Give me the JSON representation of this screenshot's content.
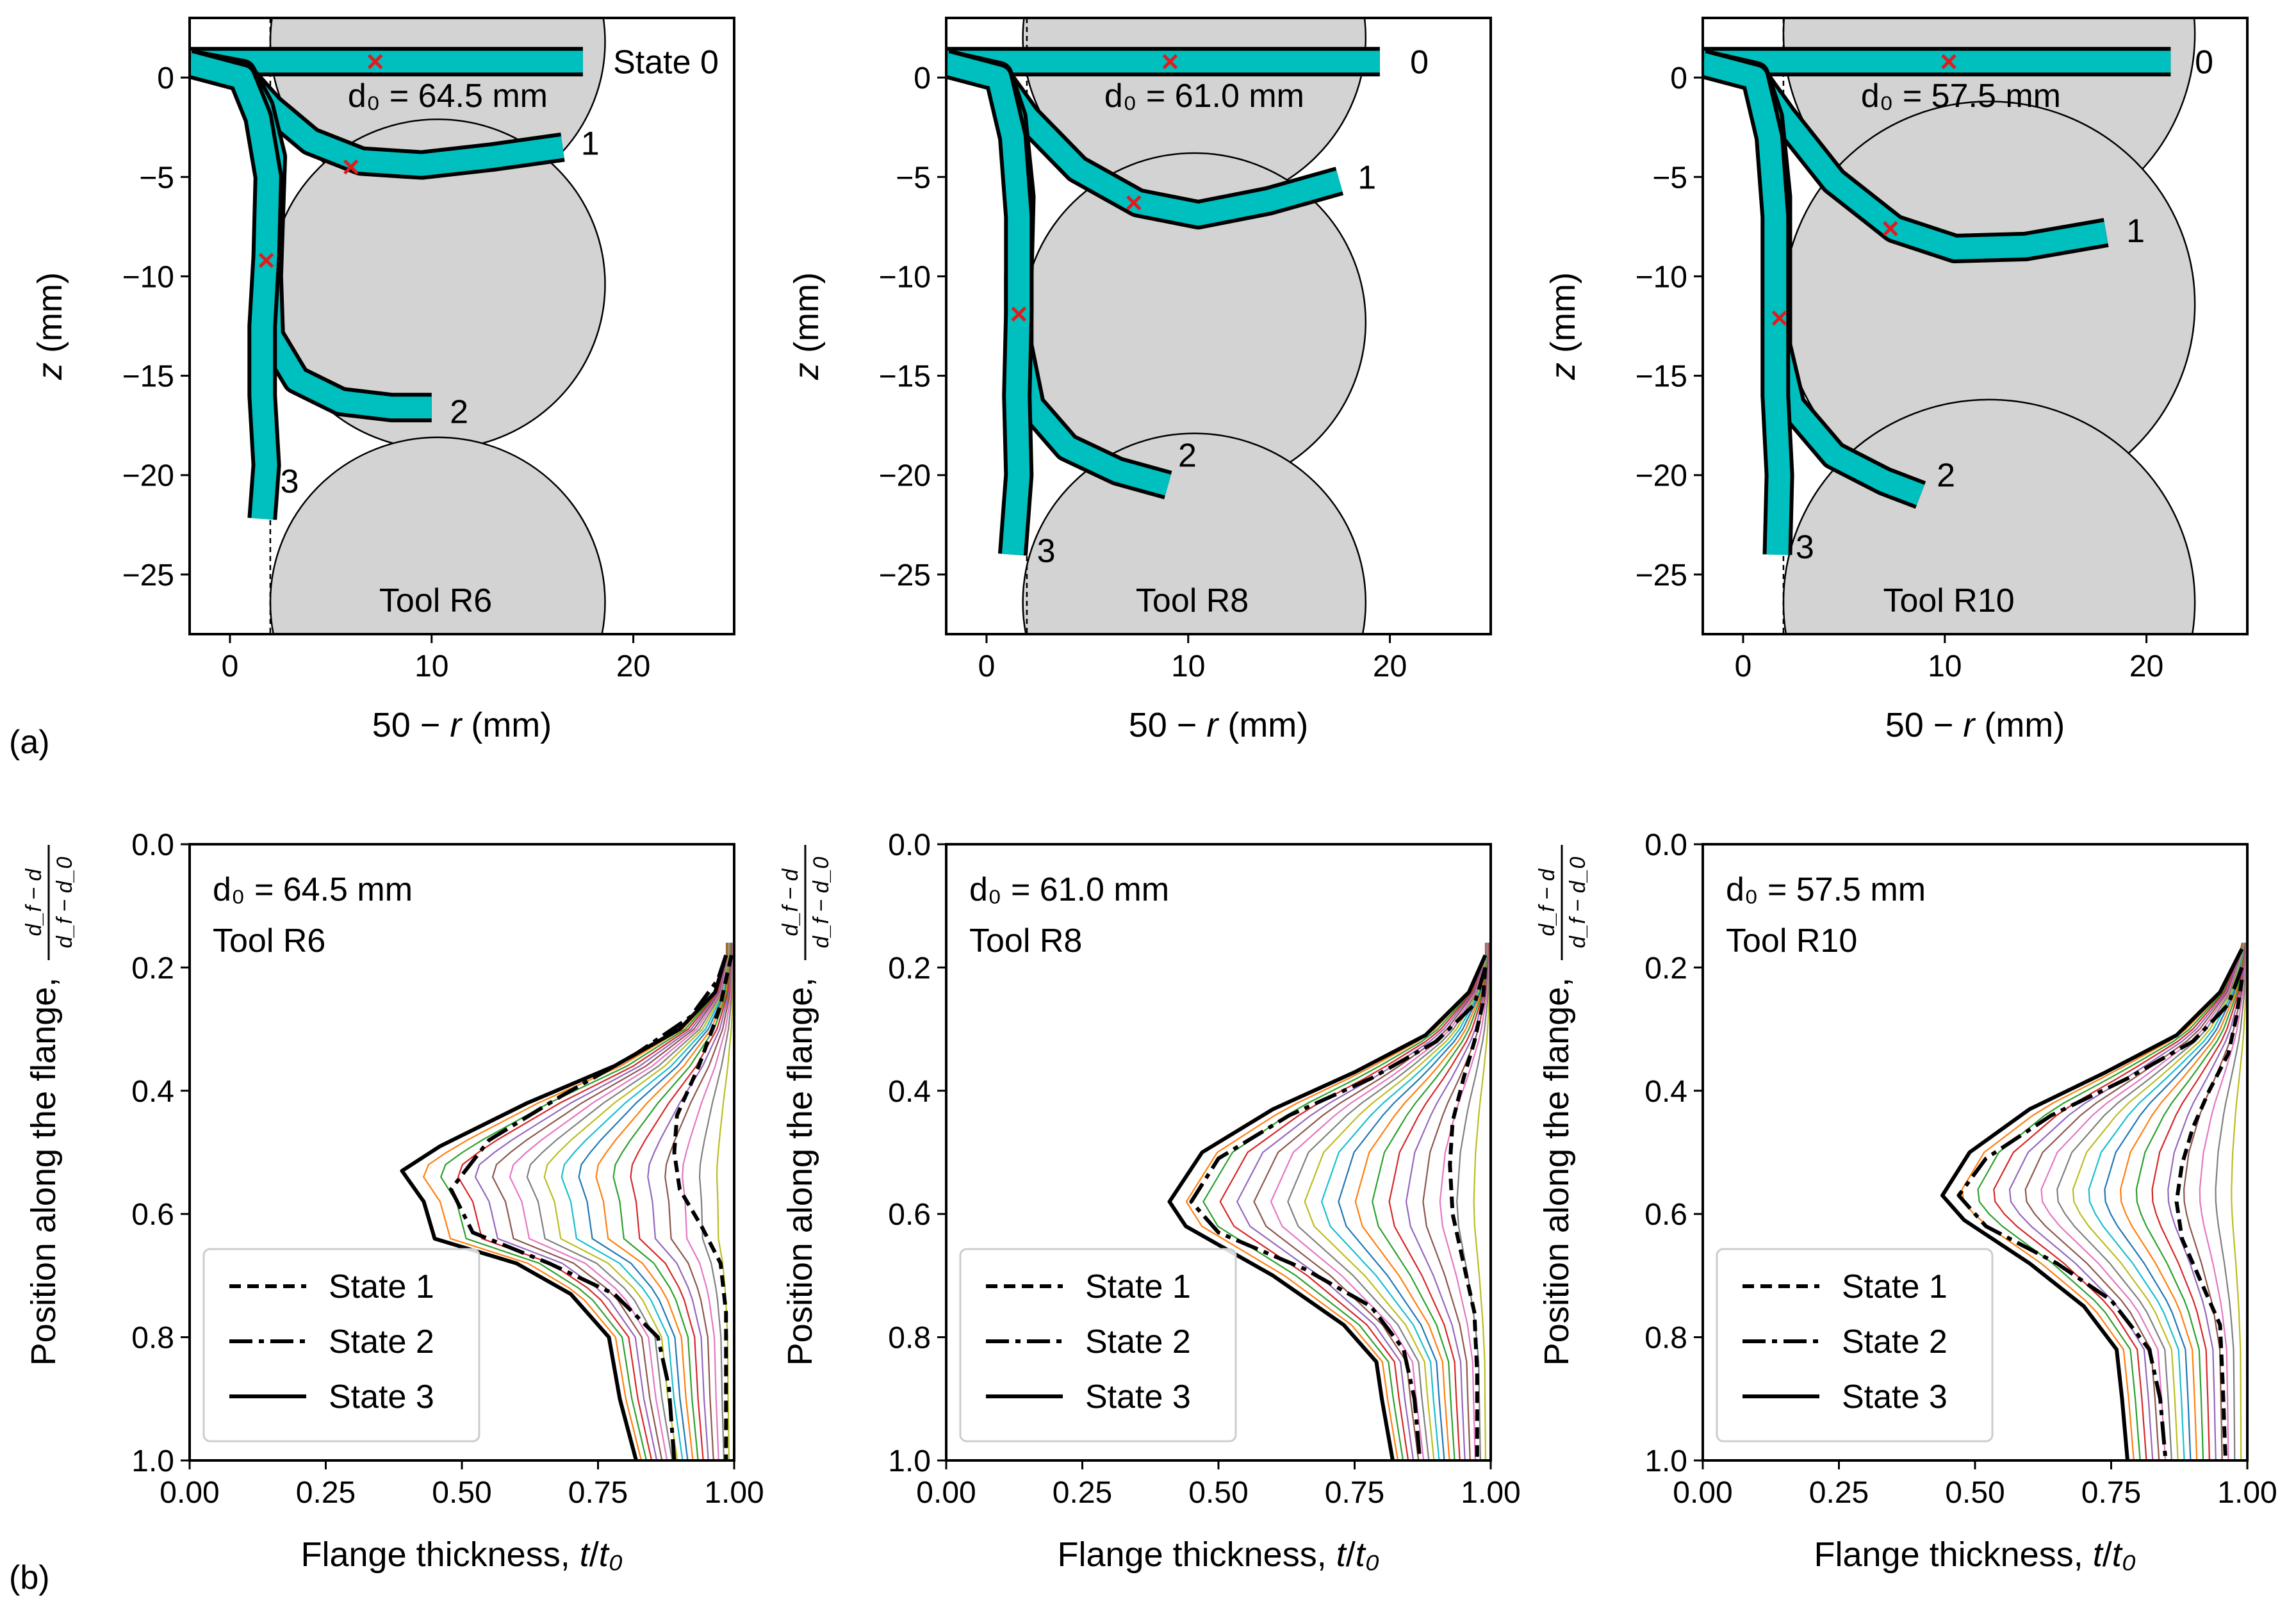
{
  "figure": {
    "panel_labels": [
      "(a)",
      "(b)"
    ]
  },
  "chart_data": [
    {
      "type": "line",
      "id": "a1",
      "description_role": "flange shape states",
      "xlabel_prefix": "50 − ",
      "xlabel_var": "r",
      "xlabel_suffix": " (mm)",
      "ylabel_var": "z",
      "ylabel_suffix": " (mm)",
      "xlim": [
        -2,
        25
      ],
      "ylim": [
        -28,
        3
      ],
      "xticks": [
        0,
        10,
        20
      ],
      "xtick_labels": [
        "0",
        "10",
        "20"
      ],
      "yticks": [
        0,
        -5,
        -10,
        -15,
        -20,
        -25
      ],
      "ytick_labels": [
        "0",
        "−5",
        "−10",
        "−15",
        "−20",
        "−25"
      ],
      "d0_label": "d₀ = 64.5 mm",
      "tool_label": "Tool R6",
      "tool_circles": [
        {
          "cx": 10.3,
          "cz": 1.8,
          "r": 8.3
        },
        {
          "cx": 10.3,
          "cz": -10.4,
          "r": 8.3
        },
        {
          "cx": 10.3,
          "cz": -26.4,
          "r": 8.3
        }
      ],
      "tool_edge_x": 2.0,
      "states": [
        {
          "label": "State 0",
          "points": [
            [
              -2,
              0.8
            ],
            [
              17.5,
              0.8
            ]
          ],
          "label_at": [
            19.0,
            0.8
          ]
        },
        {
          "label": "1",
          "points": [
            [
              -2,
              0.7
            ],
            [
              0.5,
              0.2
            ],
            [
              2.0,
              -1.5
            ],
            [
              4.0,
              -3.2
            ],
            [
              6.5,
              -4.2
            ],
            [
              9.5,
              -4.4
            ],
            [
              13.0,
              -4.0
            ],
            [
              16.5,
              -3.5
            ]
          ],
          "label_at": [
            17.4,
            -3.3
          ]
        },
        {
          "label": "2",
          "points": [
            [
              -2,
              0.7
            ],
            [
              0.6,
              0.2
            ],
            [
              1.5,
              -1.5
            ],
            [
              2.1,
              -4.0
            ],
            [
              2.0,
              -7.0
            ],
            [
              1.9,
              -10.0
            ],
            [
              2.0,
              -13.0
            ],
            [
              3.3,
              -15.2
            ],
            [
              5.5,
              -16.3
            ],
            [
              8.0,
              -16.6
            ],
            [
              10.0,
              -16.6
            ]
          ],
          "label_at": [
            10.9,
            -16.8
          ]
        },
        {
          "label": "3",
          "points": [
            [
              -2,
              0.7
            ],
            [
              0.6,
              0.0
            ],
            [
              1.4,
              -2.0
            ],
            [
              1.9,
              -5.0
            ],
            [
              1.8,
              -9.0
            ],
            [
              1.6,
              -12.5
            ],
            [
              1.6,
              -16.0
            ],
            [
              1.8,
              -19.5
            ],
            [
              1.6,
              -22.2
            ]
          ],
          "label_at": [
            2.5,
            -20.3
          ]
        }
      ],
      "markers": [
        [
          7.2,
          0.8
        ],
        [
          6.0,
          -4.5
        ],
        [
          1.8,
          -9.2
        ]
      ]
    },
    {
      "type": "line",
      "id": "a2",
      "xlabel_prefix": "50 − ",
      "xlabel_var": "r",
      "xlabel_suffix": " (mm)",
      "ylabel_var": "z",
      "ylabel_suffix": " (mm)",
      "xlim": [
        -2,
        25
      ],
      "ylim": [
        -28,
        3
      ],
      "xticks": [
        0,
        10,
        20
      ],
      "xtick_labels": [
        "0",
        "10",
        "20"
      ],
      "yticks": [
        0,
        -5,
        -10,
        -15,
        -20,
        -25
      ],
      "ytick_labels": [
        "0",
        "−5",
        "−10",
        "−15",
        "−20",
        "−25"
      ],
      "d0_label": "d₀ = 61.0 mm",
      "tool_label": "Tool R8",
      "tool_circles": [
        {
          "cx": 10.3,
          "cz": 2.0,
          "r": 8.5
        },
        {
          "cx": 10.3,
          "cz": -12.3,
          "r": 8.5
        },
        {
          "cx": 10.3,
          "cz": -26.4,
          "r": 8.5
        }
      ],
      "tool_edge_x": 2.0,
      "states": [
        {
          "label": "0",
          "points": [
            [
              -2,
              0.8
            ],
            [
              19.5,
              0.8
            ]
          ],
          "label_at": [
            21.0,
            0.8
          ]
        },
        {
          "label": "1",
          "points": [
            [
              -2,
              0.7
            ],
            [
              0.5,
              0.1
            ],
            [
              2.0,
              -2.0
            ],
            [
              4.5,
              -4.6
            ],
            [
              7.5,
              -6.3
            ],
            [
              10.5,
              -6.9
            ],
            [
              14.0,
              -6.2
            ],
            [
              17.5,
              -5.2
            ]
          ],
          "label_at": [
            18.4,
            -5.0
          ]
        },
        {
          "label": "2",
          "points": [
            [
              -2,
              0.7
            ],
            [
              0.6,
              0.1
            ],
            [
              1.3,
              -2.0
            ],
            [
              1.7,
              -6.0
            ],
            [
              1.6,
              -10.0
            ],
            [
              1.6,
              -13.5
            ],
            [
              2.2,
              -16.5
            ],
            [
              4.0,
              -18.6
            ],
            [
              6.5,
              -19.8
            ],
            [
              9.0,
              -20.5
            ]
          ],
          "label_at": [
            9.5,
            -19.0
          ]
        },
        {
          "label": "3",
          "points": [
            [
              -2,
              0.7
            ],
            [
              0.6,
              0.0
            ],
            [
              1.3,
              -3.0
            ],
            [
              1.6,
              -7.0
            ],
            [
              1.6,
              -11.8
            ],
            [
              1.5,
              -16.0
            ],
            [
              1.6,
              -20.0
            ],
            [
              1.3,
              -24.0
            ]
          ],
          "label_at": [
            2.5,
            -23.8
          ]
        }
      ],
      "markers": [
        [
          9.1,
          0.8
        ],
        [
          7.3,
          -6.3
        ],
        [
          1.6,
          -11.9
        ]
      ]
    },
    {
      "type": "line",
      "id": "a3",
      "xlabel_prefix": "50 − ",
      "xlabel_var": "r",
      "xlabel_suffix": " (mm)",
      "ylabel_var": "z",
      "ylabel_suffix": " (mm)",
      "xlim": [
        -2,
        25
      ],
      "ylim": [
        -28,
        3
      ],
      "xticks": [
        0,
        10,
        20
      ],
      "xtick_labels": [
        "0",
        "10",
        "20"
      ],
      "yticks": [
        0,
        -5,
        -10,
        -15,
        -20,
        -25
      ],
      "ytick_labels": [
        "0",
        "−5",
        "−10",
        "−15",
        "−20",
        "−25"
      ],
      "d0_label": "d₀ = 57.5 mm",
      "tool_label": "Tool R10",
      "tool_circles": [
        {
          "cx": 12.2,
          "cz": 2.2,
          "r": 10.2
        },
        {
          "cx": 12.2,
          "cz": -11.4,
          "r": 10.2
        },
        {
          "cx": 12.2,
          "cz": -26.4,
          "r": 10.2
        }
      ],
      "tool_edge_x": 2.0,
      "states": [
        {
          "label": "0",
          "points": [
            [
              -2,
              0.8
            ],
            [
              21.2,
              0.8
            ]
          ],
          "label_at": [
            22.4,
            0.8
          ]
        },
        {
          "label": "1",
          "points": [
            [
              -2,
              0.7
            ],
            [
              0.5,
              0.1
            ],
            [
              2.0,
              -2.0
            ],
            [
              4.5,
              -5.2
            ],
            [
              7.5,
              -7.6
            ],
            [
              10.5,
              -8.6
            ],
            [
              14.0,
              -8.5
            ],
            [
              18.0,
              -7.8
            ]
          ],
          "label_at": [
            19.0,
            -7.7
          ]
        },
        {
          "label": "2",
          "points": [
            [
              -2,
              0.7
            ],
            [
              0.6,
              0.1
            ],
            [
              1.3,
              -2.0
            ],
            [
              1.7,
              -6.0
            ],
            [
              1.7,
              -10.0
            ],
            [
              1.7,
              -13.5
            ],
            [
              2.4,
              -16.5
            ],
            [
              4.5,
              -19.0
            ],
            [
              7.0,
              -20.3
            ],
            [
              8.8,
              -21.0
            ]
          ],
          "label_at": [
            9.6,
            -20.0
          ]
        },
        {
          "label": "3",
          "points": [
            [
              -2,
              0.7
            ],
            [
              0.6,
              0.0
            ],
            [
              1.3,
              -3.0
            ],
            [
              1.6,
              -7.0
            ],
            [
              1.6,
              -12.0
            ],
            [
              1.6,
              -16.0
            ],
            [
              1.8,
              -20.0
            ],
            [
              1.7,
              -24.0
            ]
          ],
          "label_at": [
            2.6,
            -23.6
          ]
        }
      ],
      "markers": [
        [
          10.2,
          0.8
        ],
        [
          7.3,
          -7.6
        ],
        [
          1.8,
          -12.1
        ]
      ]
    },
    {
      "type": "line",
      "id": "b1",
      "xlabel_text": "Flange thickness, ",
      "xlabel_var": "t",
      "xlabel_den": "t₀",
      "ylabel_text": "Position along the flange, ",
      "ylabel_frac_num": "d_f − d",
      "ylabel_frac_den": "d_f − d_0",
      "xlim": [
        0.0,
        1.0
      ],
      "ylim": [
        1.0,
        0.0
      ],
      "xticks": [
        0,
        0.25,
        0.5,
        0.75,
        1.0
      ],
      "xtick_labels": [
        "0.00",
        "0.25",
        "0.50",
        "0.75",
        "1.00"
      ],
      "yticks": [
        0,
        0.2,
        0.4,
        0.6,
        0.8,
        1.0
      ],
      "ytick_labels": [
        "0.0",
        "0.2",
        "0.4",
        "0.6",
        "0.8",
        "1.0"
      ],
      "d0_label": "d₀ = 64.5 mm",
      "tool_label": "Tool R6",
      "legend": [
        "State 1",
        "State 2",
        "State 3"
      ],
      "series": [
        {
          "name": "State 1",
          "t": [
            0.995,
            0.985,
            0.975,
            0.96,
            0.935,
            0.895,
            0.89,
            0.9,
            0.94,
            0.975,
            0.985,
            0.985,
            0.985
          ],
          "y": [
            0.18,
            0.22,
            0.26,
            0.3,
            0.36,
            0.44,
            0.5,
            0.56,
            0.62,
            0.68,
            0.76,
            0.86,
            1.0
          ]
        },
        {
          "name": "State 2",
          "t": [
            0.985,
            0.97,
            0.92,
            0.82,
            0.68,
            0.55,
            0.48,
            0.52,
            0.66,
            0.78,
            0.86,
            0.88,
            0.89
          ],
          "y": [
            0.18,
            0.22,
            0.28,
            0.34,
            0.41,
            0.48,
            0.56,
            0.63,
            0.68,
            0.73,
            0.8,
            0.88,
            1.0
          ]
        },
        {
          "name": "State 3",
          "t": [
            0.985,
            0.965,
            0.9,
            0.78,
            0.62,
            0.46,
            0.39,
            0.43,
            0.45,
            0.6,
            0.7,
            0.77,
            0.78,
            0.79,
            0.82
          ],
          "y": [
            0.18,
            0.24,
            0.3,
            0.36,
            0.42,
            0.49,
            0.53,
            0.58,
            0.64,
            0.68,
            0.73,
            0.8,
            0.85,
            0.9,
            1.0
          ]
        }
      ],
      "intermediate_count": 14
    },
    {
      "type": "line",
      "id": "b2",
      "xlabel_text": "Flange thickness, ",
      "xlabel_var": "t",
      "xlabel_den": "t₀",
      "ylabel_text": "Position along the flange, ",
      "ylabel_frac_num": "d_f − d",
      "ylabel_frac_den": "d_f − d_0",
      "xlim": [
        0.0,
        1.0
      ],
      "ylim": [
        1.0,
        0.0
      ],
      "xticks": [
        0,
        0.25,
        0.5,
        0.75,
        1.0
      ],
      "xtick_labels": [
        "0.00",
        "0.25",
        "0.50",
        "0.75",
        "1.00"
      ],
      "yticks": [
        0,
        0.2,
        0.4,
        0.6,
        0.8,
        1.0
      ],
      "ytick_labels": [
        "0.0",
        "0.2",
        "0.4",
        "0.6",
        "0.8",
        "1.0"
      ],
      "d0_label": "d₀ = 61.0 mm",
      "tool_label": "Tool R8",
      "legend": [
        "State 1",
        "State 2",
        "State 3"
      ],
      "series": [
        {
          "name": "State 1",
          "t": [
            0.99,
            0.985,
            0.97,
            0.95,
            0.93,
            0.925,
            0.93,
            0.95,
            0.97,
            0.975,
            0.975
          ],
          "y": [
            0.2,
            0.26,
            0.32,
            0.38,
            0.45,
            0.52,
            0.6,
            0.68,
            0.76,
            0.86,
            1.0
          ]
        },
        {
          "name": "State 2",
          "t": [
            0.99,
            0.97,
            0.9,
            0.78,
            0.63,
            0.5,
            0.45,
            0.5,
            0.66,
            0.78,
            0.84,
            0.86,
            0.87
          ],
          "y": [
            0.2,
            0.26,
            0.32,
            0.38,
            0.44,
            0.51,
            0.58,
            0.63,
            0.69,
            0.75,
            0.82,
            0.9,
            1.0
          ]
        },
        {
          "name": "State 3",
          "t": [
            0.99,
            0.96,
            0.88,
            0.75,
            0.6,
            0.47,
            0.41,
            0.44,
            0.6,
            0.73,
            0.79,
            0.8,
            0.82
          ],
          "y": [
            0.18,
            0.24,
            0.31,
            0.37,
            0.43,
            0.5,
            0.58,
            0.62,
            0.7,
            0.78,
            0.84,
            0.9,
            1.0
          ]
        }
      ],
      "intermediate_count": 14
    },
    {
      "type": "line",
      "id": "b3",
      "xlabel_text": "Flange thickness, ",
      "xlabel_var": "t",
      "xlabel_den": "t₀",
      "ylabel_text": "Position along the flange, ",
      "ylabel_frac_num": "d_f − d",
      "ylabel_frac_den": "d_f − d_0",
      "xlim": [
        0.0,
        1.0
      ],
      "ylim": [
        1.0,
        0.0
      ],
      "xticks": [
        0,
        0.25,
        0.5,
        0.75,
        1.0
      ],
      "xtick_labels": [
        "0.00",
        "0.25",
        "0.50",
        "0.75",
        "1.00"
      ],
      "yticks": [
        0,
        0.2,
        0.4,
        0.6,
        0.8,
        1.0
      ],
      "ytick_labels": [
        "0.0",
        "0.2",
        "0.4",
        "0.6",
        "0.8",
        "1.0"
      ],
      "d0_label": "d₀ = 57.5 mm",
      "tool_label": "Tool R10",
      "legend": [
        "State 1",
        "State 2",
        "State 3"
      ],
      "series": [
        {
          "name": "State 1",
          "t": [
            0.99,
            0.98,
            0.965,
            0.93,
            0.9,
            0.88,
            0.87,
            0.88,
            0.91,
            0.95,
            0.955,
            0.96
          ],
          "y": [
            0.22,
            0.28,
            0.34,
            0.4,
            0.46,
            0.52,
            0.58,
            0.64,
            0.7,
            0.78,
            0.88,
            1.0
          ]
        },
        {
          "name": "State 2",
          "t": [
            0.99,
            0.965,
            0.9,
            0.78,
            0.64,
            0.52,
            0.47,
            0.52,
            0.65,
            0.75,
            0.82,
            0.84,
            0.85
          ],
          "y": [
            0.2,
            0.26,
            0.32,
            0.38,
            0.44,
            0.51,
            0.57,
            0.62,
            0.68,
            0.74,
            0.82,
            0.9,
            1.0
          ]
        },
        {
          "name": "State 3",
          "t": [
            0.99,
            0.95,
            0.87,
            0.74,
            0.6,
            0.49,
            0.44,
            0.48,
            0.6,
            0.7,
            0.76,
            0.77,
            0.78
          ],
          "y": [
            0.17,
            0.24,
            0.31,
            0.37,
            0.43,
            0.5,
            0.57,
            0.61,
            0.68,
            0.75,
            0.82,
            0.9,
            1.0
          ]
        }
      ],
      "intermediate_count": 14
    }
  ]
}
